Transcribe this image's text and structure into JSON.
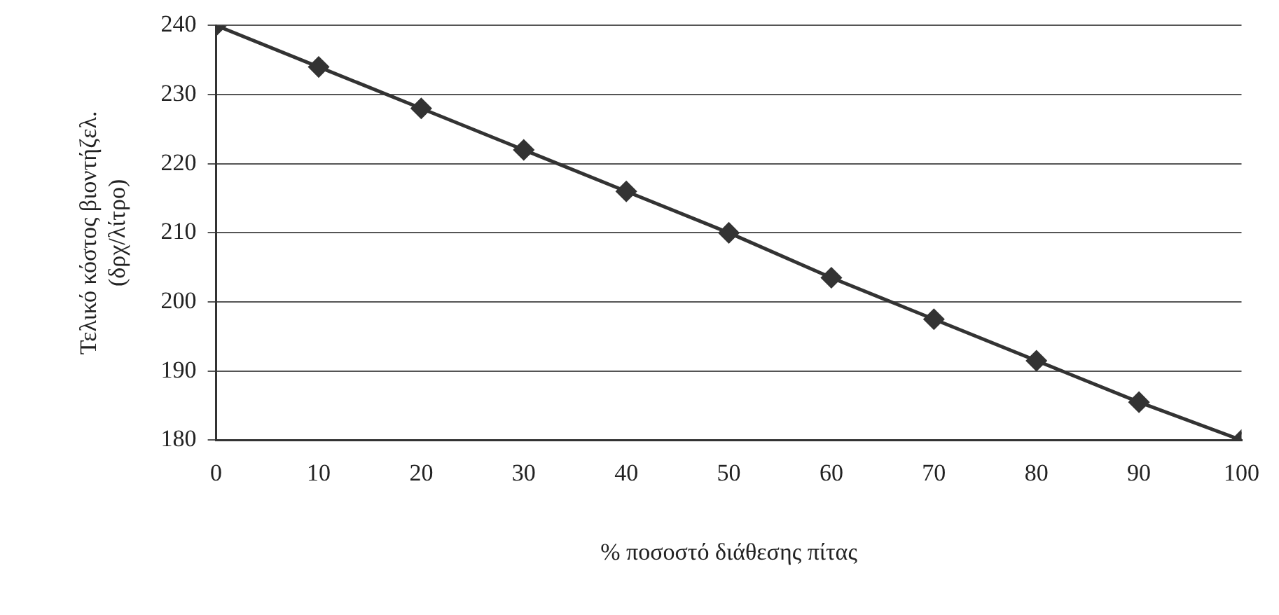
{
  "chart_data": {
    "type": "line",
    "xlabel": "% ποσοστό διάθεσης πίτας",
    "ylabel": "Τελικό κόστος βιοντήζελ.\n(δρχ/λίτρο)",
    "x": [
      0,
      10,
      20,
      30,
      40,
      50,
      60,
      70,
      80,
      90,
      100
    ],
    "series": [
      {
        "color": "#333333",
        "values": [
          240,
          234,
          228,
          222,
          216,
          210,
          203.5,
          197.5,
          191.5,
          185.5,
          180
        ]
      }
    ],
    "xlim": [
      0,
      100
    ],
    "xticks": [
      0,
      10,
      20,
      30,
      40,
      50,
      60,
      70,
      80,
      90,
      100
    ],
    "ylim": [
      180,
      240
    ],
    "yticks": [
      180,
      190,
      200,
      210,
      220,
      230,
      240
    ],
    "grid": "y",
    "legend": false,
    "marker": "diamond",
    "line_style": "solid"
  }
}
